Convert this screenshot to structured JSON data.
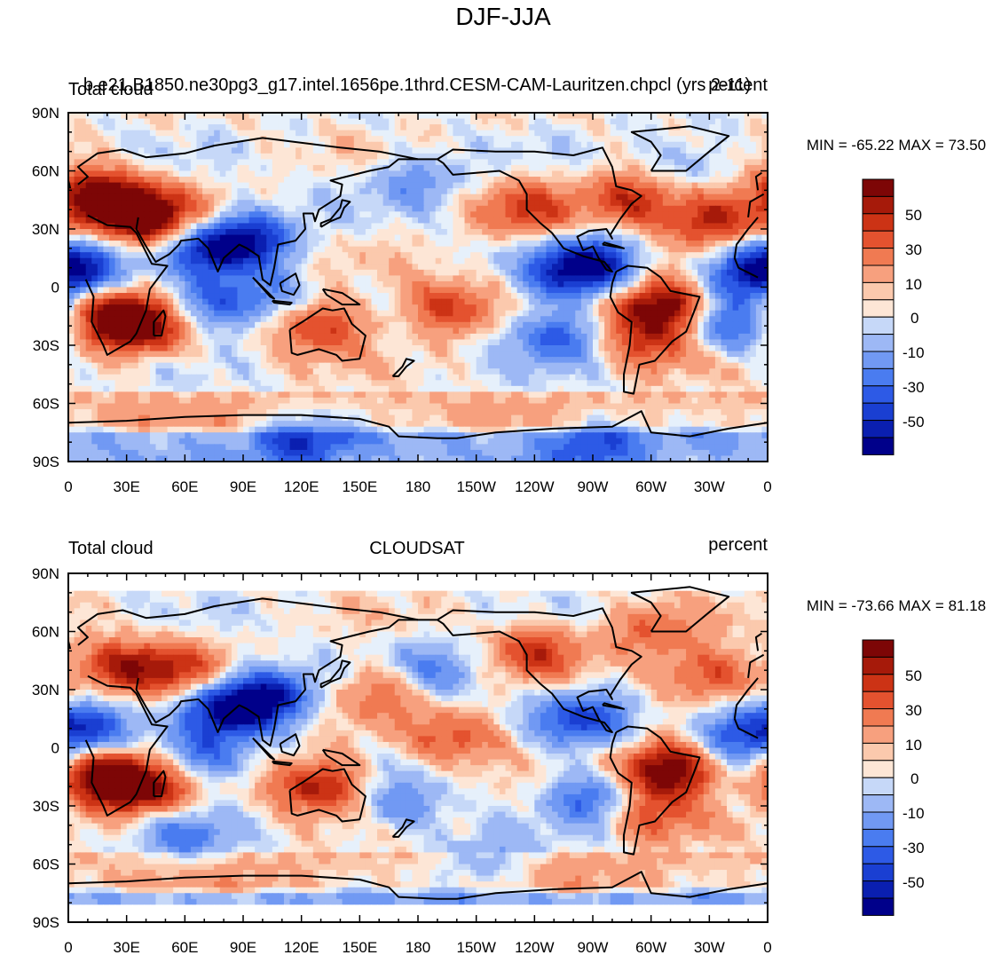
{
  "figure_title": "DJF-JJA",
  "colorbar_labels": [
    "50",
    "30",
    "10",
    "0",
    "-10",
    "-30",
    "-50"
  ],
  "colors": {
    "levels": [
      "#00008a",
      "#0a1fb0",
      "#1a3fd2",
      "#2d5ae6",
      "#4a7cf0",
      "#7199f3",
      "#9db8f5",
      "#c6d8f8",
      "#e6f0fb",
      "#fde6d6",
      "#fbc9ad",
      "#f7a07e",
      "#f07a52",
      "#e4522f",
      "#cc3315",
      "#a61a0a",
      "#7d0606"
    ],
    "coast": "#000000",
    "missing": "#ffffff"
  },
  "chart_data": [
    {
      "type": "heatmap",
      "panel": "top",
      "variable_label": "Total cloud",
      "case_label": "b.e21.B1850.ne30pg3_g17.intel.1656pe.1thrd.CESM-CAM-Lauritzen.chpcl (yrs 2-11)",
      "units_label": "percent",
      "minmax_label": "MIN = -65.22 MAX =  73.50",
      "min": -65.22,
      "max": 73.5,
      "x_range": [
        0,
        360
      ],
      "y_range": [
        -90,
        90
      ],
      "x_ticks": [
        "0",
        "30E",
        "60E",
        "90E",
        "120E",
        "150E",
        "180",
        "150W",
        "120W",
        "90W",
        "60W",
        "30W",
        "0"
      ],
      "y_ticks": [
        "90N",
        "60N",
        "30N",
        "0",
        "30S",
        "60S",
        "90S"
      ],
      "contour_levels": [
        -70,
        -60,
        -50,
        -40,
        -30,
        -20,
        -10,
        -5,
        0,
        5,
        10,
        20,
        30,
        40,
        50,
        60,
        70
      ],
      "anomalies": [
        {
          "lon": 25,
          "lat": 42,
          "value": 62
        },
        {
          "lon": 45,
          "lat": 35,
          "value": 55
        },
        {
          "lon": 10,
          "lat": 48,
          "value": 40
        },
        {
          "lon": 25,
          "lat": -15,
          "value": 70
        },
        {
          "lon": 40,
          "lat": -22,
          "value": 45
        },
        {
          "lon": 130,
          "lat": -20,
          "value": 48
        },
        {
          "lon": 195,
          "lat": -10,
          "value": 42
        },
        {
          "lon": 235,
          "lat": 40,
          "value": 38
        },
        {
          "lon": 290,
          "lat": 45,
          "value": 45
        },
        {
          "lon": 330,
          "lat": 35,
          "value": 55
        },
        {
          "lon": 305,
          "lat": -10,
          "value": 73
        },
        {
          "lon": 300,
          "lat": -28,
          "value": 40
        },
        {
          "lon": 75,
          "lat": 20,
          "value": -55
        },
        {
          "lon": 95,
          "lat": 25,
          "value": -50
        },
        {
          "lon": 5,
          "lat": 10,
          "value": -52
        },
        {
          "lon": 350,
          "lat": 8,
          "value": -50
        },
        {
          "lon": 270,
          "lat": 12,
          "value": -60
        },
        {
          "lon": 255,
          "lat": 5,
          "value": -35
        },
        {
          "lon": 70,
          "lat": -10,
          "value": -40
        },
        {
          "lon": 100,
          "lat": -5,
          "value": -30
        },
        {
          "lon": 250,
          "lat": -25,
          "value": -45
        },
        {
          "lon": 340,
          "lat": -20,
          "value": -40
        },
        {
          "lon": 180,
          "lat": 55,
          "value": -25
        },
        {
          "lon": 320,
          "lat": 65,
          "value": -20
        },
        {
          "lon": 120,
          "lat": -80,
          "value": -40
        },
        {
          "lon": 270,
          "lat": -80,
          "value": -35
        }
      ]
    },
    {
      "type": "heatmap",
      "panel": "bottom",
      "variable_label": "Total cloud",
      "case_label": "CLOUDSAT",
      "units_label": "percent",
      "minmax_label": "MIN = -73.66 MAX =  81.18",
      "min": -73.66,
      "max": 81.18,
      "x_range": [
        0,
        360
      ],
      "y_range": [
        -90,
        90
      ],
      "x_ticks": [
        "0",
        "30E",
        "60E",
        "90E",
        "120E",
        "150E",
        "180",
        "150W",
        "120W",
        "90W",
        "60W",
        "30W",
        "0"
      ],
      "y_ticks": [
        "90N",
        "60N",
        "30N",
        "0",
        "30S",
        "60S",
        "90S"
      ],
      "contour_levels": [
        -70,
        -60,
        -50,
        -40,
        -30,
        -20,
        -10,
        -5,
        0,
        5,
        10,
        20,
        30,
        40,
        50,
        60,
        70
      ],
      "anomalies": [
        {
          "lon": 25,
          "lat": 42,
          "value": 45
        },
        {
          "lon": 55,
          "lat": 40,
          "value": 40
        },
        {
          "lon": 20,
          "lat": -15,
          "value": 78
        },
        {
          "lon": 40,
          "lat": -22,
          "value": 50
        },
        {
          "lon": 130,
          "lat": -20,
          "value": 58
        },
        {
          "lon": 160,
          "lat": 30,
          "value": 30
        },
        {
          "lon": 200,
          "lat": 5,
          "value": 35
        },
        {
          "lon": 240,
          "lat": 50,
          "value": 40
        },
        {
          "lon": 330,
          "lat": 38,
          "value": 42
        },
        {
          "lon": 300,
          "lat": 60,
          "value": 30
        },
        {
          "lon": 308,
          "lat": -12,
          "value": 80
        },
        {
          "lon": 300,
          "lat": -35,
          "value": 35
        },
        {
          "lon": 85,
          "lat": 20,
          "value": -72
        },
        {
          "lon": 105,
          "lat": 28,
          "value": -50
        },
        {
          "lon": 10,
          "lat": 10,
          "value": -50
        },
        {
          "lon": 345,
          "lat": 8,
          "value": -45
        },
        {
          "lon": 265,
          "lat": 15,
          "value": -50
        },
        {
          "lon": 70,
          "lat": -5,
          "value": -40
        },
        {
          "lon": 190,
          "lat": 40,
          "value": -30
        },
        {
          "lon": 270,
          "lat": -25,
          "value": -45
        },
        {
          "lon": 170,
          "lat": -30,
          "value": -30
        },
        {
          "lon": 60,
          "lat": -45,
          "value": -30
        },
        {
          "lon": 215,
          "lat": -60,
          "value": -25
        }
      ]
    }
  ]
}
